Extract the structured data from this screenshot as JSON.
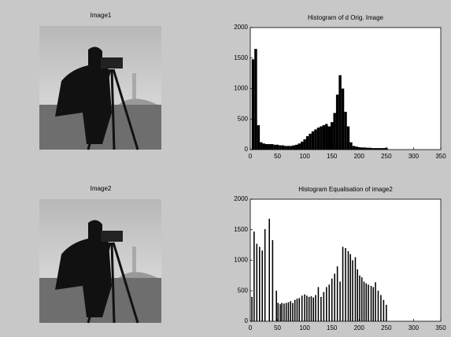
{
  "images": [
    {
      "title": "Image1"
    },
    {
      "title": "Image2"
    }
  ],
  "chart_data": [
    {
      "type": "bar",
      "title": "Histogram of d Orig. Image",
      "color": "#000000",
      "x": [
        0,
        5,
        10,
        15,
        20,
        25,
        30,
        35,
        40,
        45,
        50,
        55,
        60,
        65,
        70,
        75,
        80,
        85,
        90,
        95,
        100,
        105,
        110,
        115,
        120,
        125,
        130,
        135,
        140,
        145,
        150,
        155,
        160,
        165,
        170,
        175,
        180,
        185,
        190,
        195,
        200,
        205,
        210,
        215,
        220,
        225,
        230,
        235,
        240,
        245,
        250,
        255
      ],
      "values": [
        0,
        1480,
        1650,
        400,
        120,
        100,
        90,
        90,
        90,
        80,
        80,
        70,
        70,
        60,
        60,
        60,
        70,
        80,
        100,
        130,
        170,
        220,
        260,
        300,
        330,
        360,
        380,
        400,
        420,
        380,
        450,
        600,
        900,
        1220,
        1000,
        620,
        380,
        120,
        60,
        50,
        40,
        35,
        35,
        30,
        30,
        25,
        25,
        25,
        25,
        25,
        30,
        0
      ],
      "xlim": [
        0,
        350
      ],
      "xticks": [
        0,
        50,
        100,
        150,
        200,
        250,
        300,
        350
      ],
      "ylim": [
        0,
        2000
      ],
      "yticks": [
        0,
        500,
        1000,
        1500,
        2000
      ]
    },
    {
      "type": "bar",
      "title": "Histogram Equalisation of image2",
      "color": "#000000",
      "x": [
        3,
        7,
        12,
        17,
        22,
        27,
        35,
        41,
        48,
        51,
        55,
        58,
        62,
        66,
        70,
        74,
        78,
        82,
        86,
        90,
        95,
        100,
        104,
        108,
        112,
        116,
        120,
        125,
        130,
        135,
        140,
        145,
        150,
        155,
        160,
        165,
        170,
        175,
        180,
        184,
        188,
        193,
        197,
        201,
        205,
        209,
        213,
        217,
        222,
        226,
        230,
        235,
        240,
        245,
        250
      ],
      "values": [
        400,
        1470,
        1270,
        1220,
        1160,
        1510,
        1680,
        1330,
        500,
        300,
        280,
        300,
        290,
        300,
        310,
        330,
        300,
        350,
        370,
        380,
        420,
        440,
        420,
        400,
        410,
        390,
        430,
        560,
        400,
        480,
        560,
        600,
        700,
        780,
        900,
        650,
        1220,
        1200,
        1150,
        1100,
        1000,
        1050,
        850,
        750,
        720,
        650,
        620,
        600,
        580,
        560,
        640,
        500,
        430,
        350,
        270
      ],
      "xlim": [
        0,
        350
      ],
      "xticks": [
        0,
        50,
        100,
        150,
        200,
        250,
        300,
        350
      ],
      "ylim": [
        0,
        2000
      ],
      "yticks": [
        0,
        500,
        1000,
        1500,
        2000
      ]
    }
  ]
}
